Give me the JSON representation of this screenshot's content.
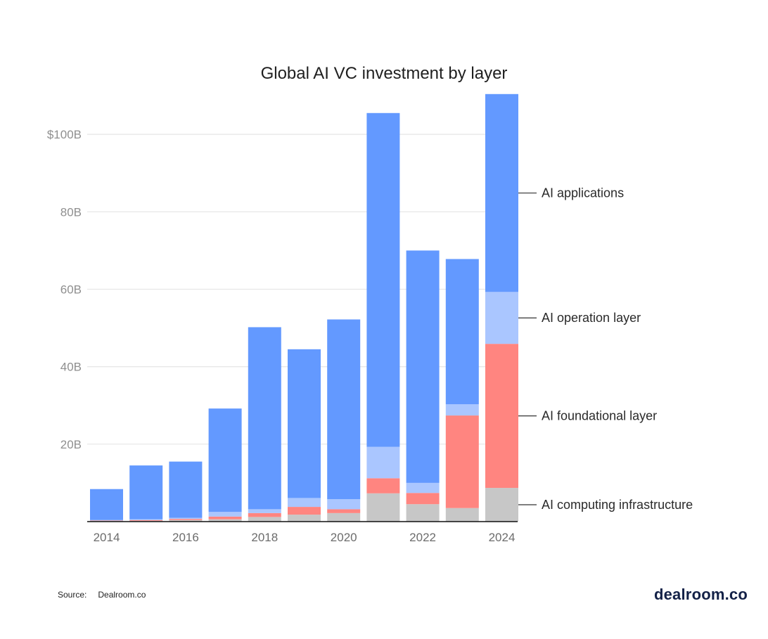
{
  "chart_data": {
    "type": "bar",
    "title": "Global AI VC investment by layer",
    "xlabel": "",
    "ylabel": "",
    "categories": [
      "2014",
      "2015",
      "2016",
      "2017",
      "2018",
      "2019",
      "2020",
      "2021",
      "2022",
      "2023",
      "2024"
    ],
    "visible_x_ticks": [
      "2014",
      "2016",
      "2018",
      "2020",
      "2022",
      "2024"
    ],
    "ylim": [
      0,
      110
    ],
    "y_ticks": [
      20,
      40,
      60,
      80,
      100
    ],
    "y_tick_labels": [
      "20B",
      "40B",
      "60B",
      "80B",
      "$100B"
    ],
    "grid": true,
    "stacked": true,
    "legend_placement": "right",
    "series": [
      {
        "name": "AI computing infrastructure",
        "color": "#c7c7c7",
        "values": [
          0.2,
          0.2,
          0.4,
          0.6,
          1.2,
          1.8,
          2.2,
          7.3,
          4.5,
          3.5,
          8.7
        ]
      },
      {
        "name": "AI foundational layer",
        "color": "#ff8580",
        "values": [
          0.1,
          0.2,
          0.3,
          0.7,
          1.0,
          2.0,
          1.0,
          3.9,
          2.9,
          23.9,
          37.2
        ]
      },
      {
        "name": "AI operation layer",
        "color": "#aac6ff",
        "values": [
          0.1,
          0.2,
          0.3,
          1.2,
          1.0,
          2.3,
          2.6,
          8.1,
          2.6,
          2.9,
          13.4
        ]
      },
      {
        "name": "AI applications",
        "color": "#6399ff",
        "values": [
          8.0,
          13.9,
          14.5,
          26.7,
          47.0,
          38.4,
          46.4,
          86.2,
          60.0,
          37.5,
          51.1
        ]
      }
    ],
    "legend_order": [
      "AI applications",
      "AI operation layer",
      "AI foundational layer",
      "AI computing infrastructure"
    ]
  },
  "footer": {
    "source_label": "Source:",
    "source_value": "Dealroom.co"
  },
  "branding": {
    "logo_text": "dealroom.co"
  }
}
